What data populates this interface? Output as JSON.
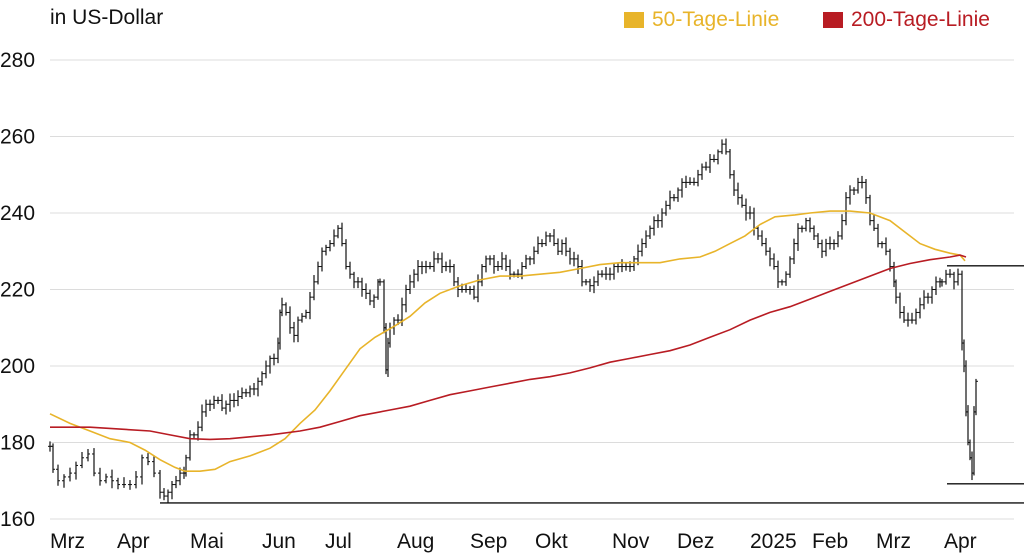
{
  "chart_data": {
    "type": "line",
    "subtype": "ohlc-bars-with-moving-averages",
    "unit_label": "in US-Dollar",
    "y_axis": {
      "min": 160,
      "max": 280,
      "ticks": [
        160,
        180,
        200,
        220,
        240,
        260,
        280
      ]
    },
    "x_ticks": [
      "Mrz",
      "Apr",
      "Mai",
      "Jun",
      "Jul",
      "Aug",
      "Sep",
      "Okt",
      "Nov",
      "Dez",
      "2025",
      "Feb",
      "Mrz",
      "Apr"
    ],
    "gridlines": true,
    "legend_position": "top-right",
    "price_series": {
      "color": "#111111",
      "points": [
        [
          0,
          179
        ],
        [
          3,
          173
        ],
        [
          8,
          170
        ],
        [
          14,
          171
        ],
        [
          20,
          172
        ],
        [
          26,
          174
        ],
        [
          32,
          176
        ],
        [
          38,
          177
        ],
        [
          44,
          172
        ],
        [
          50,
          170
        ],
        [
          56,
          171
        ],
        [
          62,
          170
        ],
        [
          68,
          169
        ],
        [
          74,
          169
        ],
        [
          80,
          169
        ],
        [
          86,
          171
        ],
        [
          92,
          176
        ],
        [
          98,
          175
        ],
        [
          104,
          172
        ],
        [
          110,
          167
        ],
        [
          114,
          166
        ],
        [
          118,
          167
        ],
        [
          122,
          169
        ],
        [
          126,
          170
        ],
        [
          130,
          172
        ],
        [
          134,
          172
        ],
        [
          136,
          176
        ],
        [
          140,
          182
        ],
        [
          144,
          182
        ],
        [
          148,
          184
        ],
        [
          152,
          188
        ],
        [
          156,
          190
        ],
        [
          160,
          190
        ],
        [
          164,
          191
        ],
        [
          168,
          191
        ],
        [
          172,
          189
        ],
        [
          176,
          190
        ],
        [
          180,
          191
        ],
        [
          184,
          191
        ],
        [
          188,
          192
        ],
        [
          192,
          193
        ],
        [
          196,
          193
        ],
        [
          200,
          194
        ],
        [
          204,
          194
        ],
        [
          208,
          196
        ],
        [
          212,
          198
        ],
        [
          216,
          200
        ],
        [
          220,
          202
        ],
        [
          224,
          202
        ],
        [
          228,
          206
        ],
        [
          230,
          214
        ],
        [
          232,
          216
        ],
        [
          236,
          214
        ],
        [
          240,
          210
        ],
        [
          244,
          208
        ],
        [
          248,
          212
        ],
        [
          252,
          213
        ],
        [
          256,
          214
        ],
        [
          260,
          218
        ],
        [
          264,
          222
        ],
        [
          268,
          226
        ],
        [
          272,
          230
        ],
        [
          276,
          231
        ],
        [
          280,
          232
        ],
        [
          284,
          234
        ],
        [
          288,
          236
        ],
        [
          292,
          232
        ],
        [
          296,
          226
        ],
        [
          300,
          224
        ],
        [
          304,
          222
        ],
        [
          308,
          222
        ],
        [
          312,
          220
        ],
        [
          316,
          219
        ],
        [
          320,
          217
        ],
        [
          324,
          218
        ],
        [
          328,
          222
        ],
        [
          330,
          222
        ],
        [
          334,
          210
        ],
        [
          336,
          199
        ],
        [
          338,
          206
        ],
        [
          340,
          210
        ],
        [
          344,
          212
        ],
        [
          348,
          212
        ],
        [
          352,
          216
        ],
        [
          356,
          220
        ],
        [
          360,
          222
        ],
        [
          364,
          224
        ],
        [
          368,
          226
        ],
        [
          372,
          226
        ],
        [
          376,
          226
        ],
        [
          380,
          226
        ],
        [
          384,
          228
        ],
        [
          388,
          228
        ],
        [
          392,
          226
        ],
        [
          396,
          226
        ],
        [
          400,
          226
        ],
        [
          404,
          222
        ],
        [
          408,
          220
        ],
        [
          412,
          220
        ],
        [
          416,
          220
        ],
        [
          420,
          220
        ],
        [
          424,
          218
        ],
        [
          428,
          222
        ],
        [
          432,
          226
        ],
        [
          436,
          228
        ],
        [
          440,
          228
        ],
        [
          444,
          226
        ],
        [
          448,
          226
        ],
        [
          452,
          228
        ],
        [
          456,
          226
        ],
        [
          460,
          224
        ],
        [
          464,
          224
        ],
        [
          468,
          224
        ],
        [
          472,
          226
        ],
        [
          476,
          228
        ],
        [
          480,
          228
        ],
        [
          484,
          230
        ],
        [
          488,
          232
        ],
        [
          492,
          232
        ],
        [
          496,
          234
        ],
        [
          500,
          234
        ],
        [
          504,
          232
        ],
        [
          508,
          230
        ],
        [
          512,
          232
        ],
        [
          516,
          230
        ],
        [
          520,
          228
        ],
        [
          524,
          228
        ],
        [
          528,
          226
        ],
        [
          532,
          222
        ],
        [
          536,
          222
        ],
        [
          540,
          221
        ],
        [
          544,
          222
        ],
        [
          548,
          224
        ],
        [
          552,
          224
        ],
        [
          556,
          224
        ],
        [
          560,
          224
        ],
        [
          564,
          226
        ],
        [
          568,
          226
        ],
        [
          572,
          226
        ],
        [
          576,
          226
        ],
        [
          580,
          226
        ],
        [
          584,
          228
        ],
        [
          588,
          230
        ],
        [
          592,
          232
        ],
        [
          596,
          234
        ],
        [
          600,
          236
        ],
        [
          604,
          238
        ],
        [
          608,
          238
        ],
        [
          612,
          240
        ],
        [
          616,
          242
        ],
        [
          620,
          244
        ],
        [
          624,
          244
        ],
        [
          628,
          246
        ],
        [
          632,
          248
        ],
        [
          636,
          248
        ],
        [
          640,
          248
        ],
        [
          644,
          248
        ],
        [
          648,
          250
        ],
        [
          652,
          252
        ],
        [
          656,
          252
        ],
        [
          660,
          254
        ],
        [
          664,
          254
        ],
        [
          668,
          256
        ],
        [
          672,
          258
        ],
        [
          676,
          256
        ],
        [
          680,
          250
        ],
        [
          684,
          246
        ],
        [
          688,
          244
        ],
        [
          692,
          242
        ],
        [
          696,
          240
        ],
        [
          700,
          240
        ],
        [
          704,
          236
        ],
        [
          708,
          234
        ],
        [
          712,
          232
        ],
        [
          716,
          230
        ],
        [
          720,
          228
        ],
        [
          724,
          226
        ],
        [
          728,
          222
        ],
        [
          732,
          222
        ],
        [
          736,
          224
        ],
        [
          740,
          228
        ],
        [
          744,
          232
        ],
        [
          748,
          236
        ],
        [
          752,
          236
        ],
        [
          756,
          238
        ],
        [
          760,
          236
        ],
        [
          764,
          234
        ],
        [
          768,
          232
        ],
        [
          772,
          230
        ],
        [
          776,
          232
        ],
        [
          780,
          232
        ],
        [
          784,
          232
        ],
        [
          788,
          234
        ],
        [
          792,
          238
        ],
        [
          796,
          244
        ],
        [
          800,
          246
        ],
        [
          804,
          246
        ],
        [
          808,
          248
        ],
        [
          812,
          248
        ],
        [
          816,
          244
        ],
        [
          820,
          238
        ],
        [
          824,
          236
        ],
        [
          828,
          232
        ],
        [
          832,
          232
        ],
        [
          836,
          230
        ],
        [
          840,
          226
        ],
        [
          844,
          222
        ],
        [
          846,
          218
        ],
        [
          850,
          214
        ],
        [
          854,
          212
        ],
        [
          858,
          212
        ],
        [
          862,
          212
        ],
        [
          866,
          214
        ],
        [
          870,
          216
        ],
        [
          874,
          218
        ],
        [
          878,
          218
        ],
        [
          882,
          220
        ],
        [
          886,
          222
        ],
        [
          890,
          222
        ],
        [
          892,
          222
        ],
        [
          896,
          224
        ],
        [
          900,
          224
        ],
        [
          904,
          222
        ],
        [
          908,
          224
        ],
        [
          912,
          206
        ],
        [
          914,
          200
        ],
        [
          916,
          188
        ],
        [
          918,
          180
        ],
        [
          920,
          176
        ],
        [
          922,
          172
        ],
        [
          924,
          188
        ],
        [
          926,
          196
        ]
      ]
    },
    "series": [
      {
        "name": "50-Tage-Linie",
        "color": "#e8b42a",
        "points": [
          [
            0,
            187.5
          ],
          [
            20,
            185
          ],
          [
            40,
            183
          ],
          [
            60,
            181
          ],
          [
            80,
            180
          ],
          [
            95,
            178
          ],
          [
            110,
            175.5
          ],
          [
            125,
            173.5
          ],
          [
            135,
            172.5
          ],
          [
            150,
            172.5
          ],
          [
            165,
            173
          ],
          [
            180,
            175
          ],
          [
            200,
            176.5
          ],
          [
            220,
            178.5
          ],
          [
            235,
            181
          ],
          [
            250,
            185
          ],
          [
            265,
            188.5
          ],
          [
            280,
            193.5
          ],
          [
            295,
            199
          ],
          [
            310,
            204.5
          ],
          [
            325,
            207.5
          ],
          [
            345,
            210.5
          ],
          [
            360,
            213
          ],
          [
            375,
            216.5
          ],
          [
            390,
            219
          ],
          [
            410,
            221
          ],
          [
            430,
            222.5
          ],
          [
            450,
            223.5
          ],
          [
            470,
            223.5
          ],
          [
            490,
            224
          ],
          [
            510,
            224.5
          ],
          [
            530,
            225.5
          ],
          [
            550,
            226.5
          ],
          [
            570,
            227
          ],
          [
            590,
            227
          ],
          [
            610,
            227
          ],
          [
            630,
            228
          ],
          [
            650,
            228.5
          ],
          [
            665,
            230
          ],
          [
            680,
            232
          ],
          [
            695,
            234
          ],
          [
            710,
            237
          ],
          [
            725,
            239
          ],
          [
            745,
            239.5
          ],
          [
            760,
            240
          ],
          [
            780,
            240.5
          ],
          [
            800,
            240.5
          ],
          [
            820,
            240
          ],
          [
            840,
            238
          ],
          [
            855,
            235
          ],
          [
            870,
            232
          ],
          [
            885,
            230.5
          ],
          [
            900,
            229.5
          ],
          [
            910,
            229
          ],
          [
            915,
            227.5
          ]
        ]
      },
      {
        "name": "200-Tage-Linie",
        "color": "#b81c23",
        "points": [
          [
            0,
            184
          ],
          [
            40,
            184
          ],
          [
            70,
            183.5
          ],
          [
            100,
            183
          ],
          [
            120,
            182
          ],
          [
            140,
            181
          ],
          [
            160,
            180.8
          ],
          [
            180,
            181
          ],
          [
            200,
            181.5
          ],
          [
            220,
            182
          ],
          [
            250,
            183
          ],
          [
            270,
            184
          ],
          [
            290,
            185.5
          ],
          [
            310,
            187
          ],
          [
            340,
            188.5
          ],
          [
            360,
            189.5
          ],
          [
            380,
            191
          ],
          [
            400,
            192.5
          ],
          [
            420,
            193.5
          ],
          [
            440,
            194.5
          ],
          [
            460,
            195.5
          ],
          [
            480,
            196.5
          ],
          [
            500,
            197.2
          ],
          [
            520,
            198.2
          ],
          [
            540,
            199.5
          ],
          [
            560,
            201
          ],
          [
            580,
            202
          ],
          [
            600,
            203
          ],
          [
            620,
            204
          ],
          [
            640,
            205.5
          ],
          [
            660,
            207.5
          ],
          [
            680,
            209.5
          ],
          [
            700,
            212
          ],
          [
            720,
            214
          ],
          [
            740,
            215.5
          ],
          [
            760,
            217.5
          ],
          [
            780,
            219.5
          ],
          [
            800,
            221.5
          ],
          [
            820,
            223.5
          ],
          [
            840,
            225.5
          ],
          [
            860,
            226.8
          ],
          [
            880,
            227.8
          ],
          [
            900,
            228.5
          ],
          [
            910,
            229
          ],
          [
            916,
            228.5
          ]
        ]
      }
    ],
    "reference_lines": [
      {
        "y": 164.2,
        "x_from": 110,
        "x_to": 1000,
        "color": "#111111"
      },
      {
        "y": 226.2,
        "x_from": 897,
        "x_to": 1000,
        "color": "#111111"
      },
      {
        "y": 169.2,
        "x_from": 897,
        "x_to": 1000,
        "color": "#111111"
      }
    ]
  }
}
